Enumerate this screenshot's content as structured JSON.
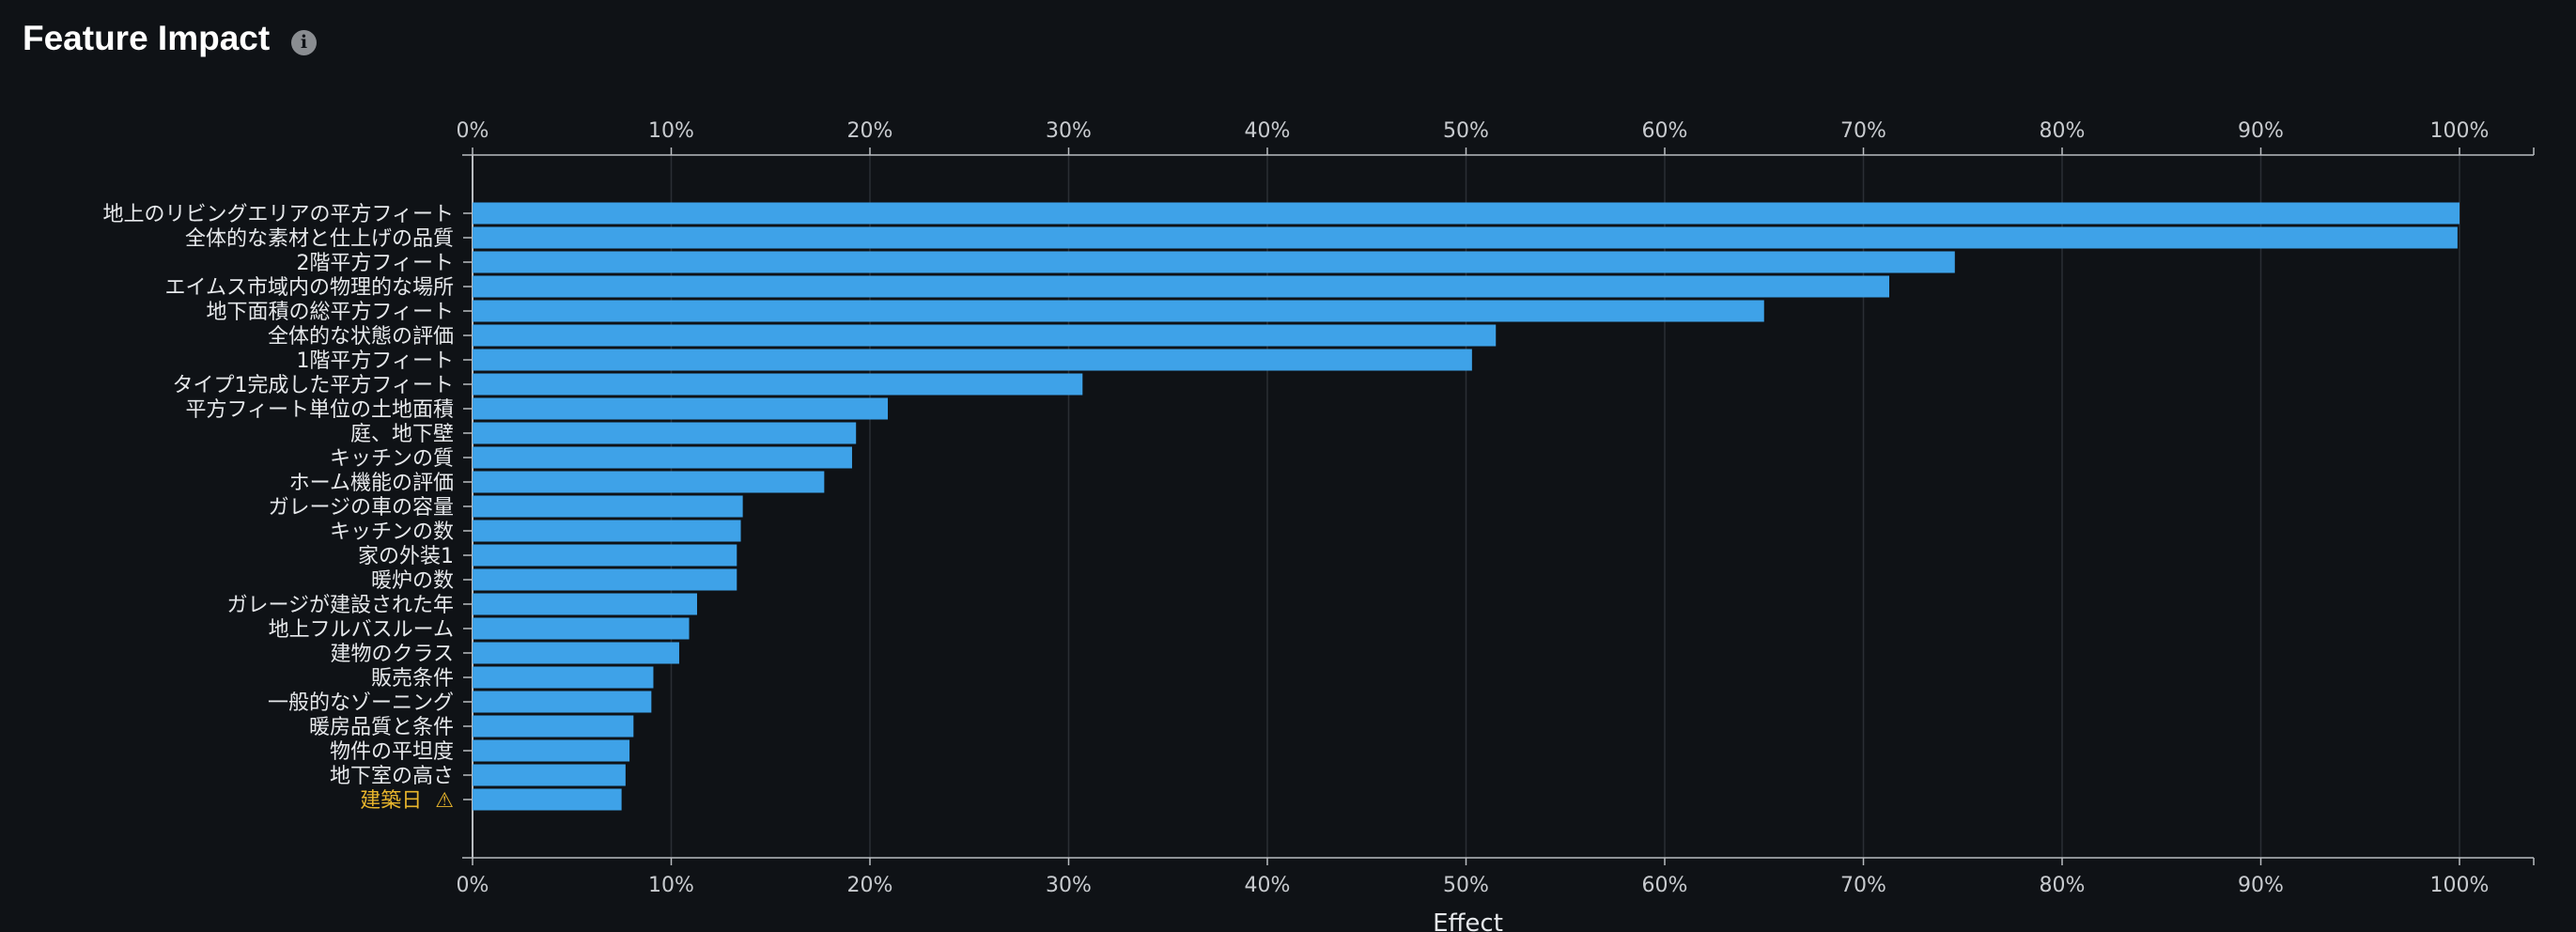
{
  "header": {
    "title": "Feature Impact",
    "info_icon": "info-icon"
  },
  "chart_data": {
    "type": "bar",
    "orientation": "horizontal",
    "title": "Feature Impact",
    "xlabel": "Effect",
    "ylabel": "",
    "xlim": [
      0,
      100
    ],
    "x_ticks": [
      "0%",
      "10%",
      "20%",
      "30%",
      "40%",
      "50%",
      "60%",
      "70%",
      "80%",
      "90%",
      "100%"
    ],
    "x_axis_position": "top-and-bottom",
    "grid": true,
    "bar_color": "#3ea2e8",
    "warning_color": "#e8b52c",
    "categories": [
      "地上のリビングエリアの平方フィート",
      "全体的な素材と仕上げの品質",
      "2階平方フィート",
      "エイムス市域内の物理的な場所",
      "地下面積の総平方フィート",
      "全体的な状態の評価",
      "1階平方フィート",
      "タイプ1完成した平方フィート",
      "平方フィート単位の土地面積",
      "庭、地下壁",
      "キッチンの質",
      "ホーム機能の評価",
      "ガレージの車の容量",
      "キッチンの数",
      "家の外装1",
      "暖炉の数",
      "ガレージが建設された年",
      "地上フルバスルーム",
      "建物のクラス",
      "販売条件",
      "一般的なゾーニング",
      "暖房品質と条件",
      "物件の平坦度",
      "地下室の高さ",
      "建築日"
    ],
    "values": [
      100,
      99.9,
      74.6,
      71.3,
      65.0,
      51.5,
      50.3,
      30.7,
      20.9,
      19.3,
      19.1,
      17.7,
      13.6,
      13.5,
      13.3,
      13.3,
      11.3,
      10.9,
      10.4,
      9.1,
      9.0,
      8.1,
      7.9,
      7.7,
      7.5
    ],
    "warnings": [
      "建築日"
    ],
    "warning_icon": "warning-icon",
    "warning_glyph": "⚠"
  }
}
